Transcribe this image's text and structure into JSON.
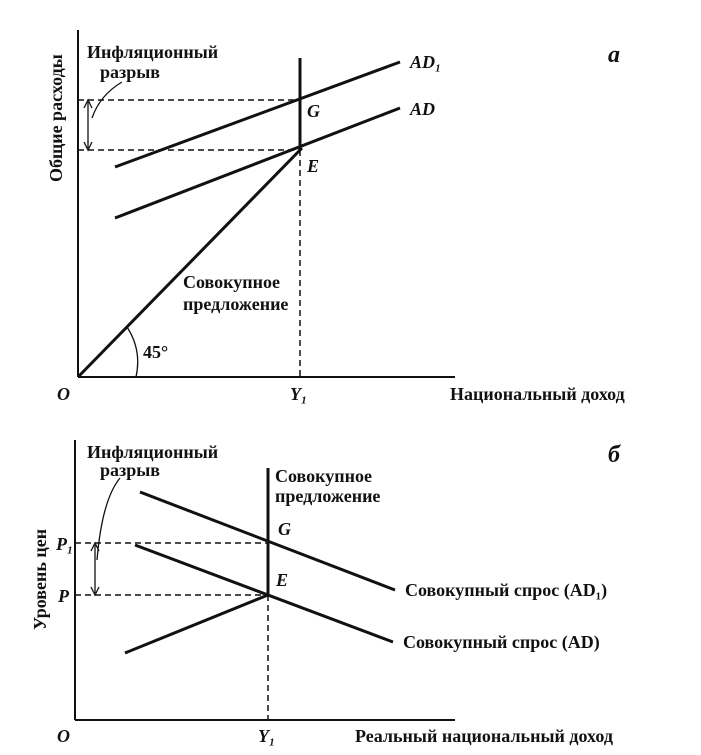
{
  "panel_a": {
    "letter": "а",
    "y_axis_label": "Общие расходы",
    "x_axis_label": "Национальный доход",
    "origin": "O",
    "y_mark": "Y₁",
    "gap_label": [
      "Инфляционный",
      "разрыв"
    ],
    "curve_ad1": "AD₁",
    "curve_ad": "AD",
    "point_g": "G",
    "point_e": "E",
    "supply_label": [
      "Совокупное",
      "предложение"
    ],
    "angle": "45°"
  },
  "panel_b": {
    "letter": "б",
    "y_axis_label": "Уровень цен",
    "x_axis_label": "Реальный национальный доход",
    "origin": "O",
    "y_mark": "Y₁",
    "p1": "P₁",
    "p": "P",
    "gap_label": [
      "Инфляционный",
      "разрыв"
    ],
    "supply_label": [
      "Совокупное",
      "предложение"
    ],
    "point_g": "G",
    "point_e": "E",
    "curve_ad1": "Совокупный спрос (AD₁)",
    "curve_ad": "Совокупный спрос (AD)"
  }
}
